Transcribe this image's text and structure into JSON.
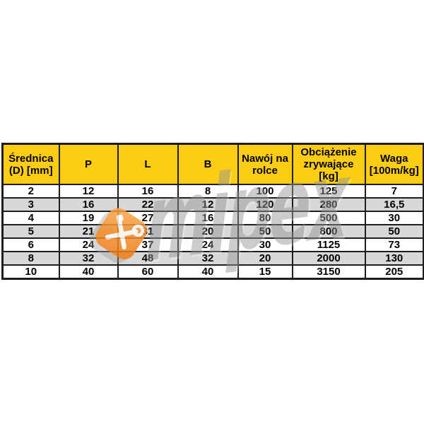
{
  "page": {
    "background": "#ffffff"
  },
  "watermark": {
    "text": "mipex",
    "logo": "crossed-tools-shield",
    "text_color": "#969696",
    "logo_orange": "#ee7d17",
    "logo_orange_light": "#f9a64a"
  },
  "table": {
    "header_bg": "#fccd12",
    "alt_row_bg": "#d8d8d8",
    "border_color": "#1e1e1e",
    "columns": [
      "Średnica (D) [mm]",
      "P",
      "L",
      "B",
      "Nawój na rolce",
      "Obciążenie zrywające [kg]",
      "Waga [100m/kg]"
    ],
    "rows": [
      [
        "2",
        "12",
        "16",
        "8",
        "100",
        "125",
        "7"
      ],
      [
        "3",
        "16",
        "22",
        "12",
        "120",
        "280",
        "16,5"
      ],
      [
        "4",
        "19",
        "27",
        "16",
        "80",
        "500",
        "30"
      ],
      [
        "5",
        "21",
        "31",
        "20",
        "50",
        "800",
        "50"
      ],
      [
        "6",
        "24",
        "37",
        "24",
        "30",
        "1125",
        "73"
      ],
      [
        "8",
        "32",
        "48",
        "32",
        "20",
        "2000",
        "130"
      ],
      [
        "10",
        "40",
        "60",
        "40",
        "15",
        "3150",
        "205"
      ]
    ]
  }
}
